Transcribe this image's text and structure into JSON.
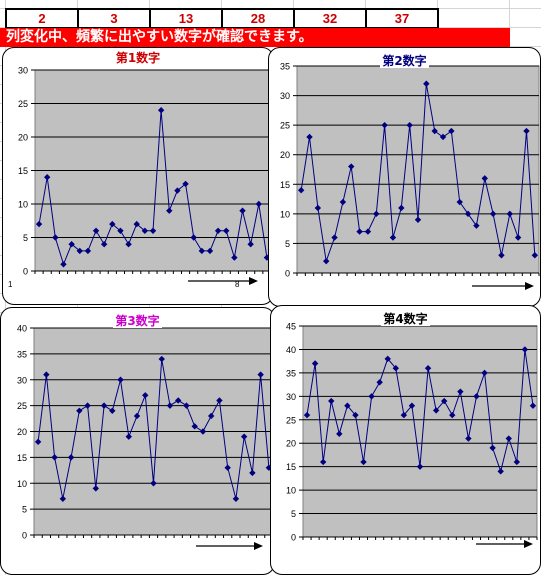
{
  "header_numbers": [
    "2",
    "3",
    "13",
    "28",
    "32",
    "37"
  ],
  "banner_text": "列変化中、頻繁に出やすい数字が確認できます。",
  "colors": {
    "series": "#000080",
    "plot_bg": "#c0c0c0",
    "banner_bg": "#ff0000",
    "number_text": "#cc0000"
  },
  "chart_data": [
    {
      "type": "line",
      "title": "第1数字",
      "title_color": "#cc0000",
      "ylim": [
        0,
        30
      ],
      "yticks": [
        0,
        5,
        10,
        15,
        20,
        25,
        30
      ],
      "x_tick_labels": [
        "1",
        "8"
      ],
      "grid": true,
      "values": [
        7,
        14,
        5,
        1,
        4,
        3,
        3,
        6,
        4,
        7,
        6,
        4,
        7,
        6,
        6,
        24,
        9,
        12,
        13,
        5,
        3,
        3,
        6,
        6,
        2,
        9,
        4,
        10,
        2
      ]
    },
    {
      "type": "line",
      "title": "第2数字",
      "title_color": "#000080",
      "ylim": [
        0,
        35
      ],
      "yticks": [
        0,
        5,
        10,
        15,
        20,
        25,
        30,
        35
      ],
      "x_tick_labels": [],
      "grid": true,
      "values": [
        14,
        23,
        11,
        2,
        6,
        12,
        18,
        7,
        7,
        10,
        25,
        6,
        11,
        25,
        9,
        32,
        24,
        23,
        24,
        12,
        10,
        8,
        16,
        10,
        3,
        10,
        6,
        24,
        3
      ]
    },
    {
      "type": "line",
      "title": "第3数字",
      "title_color": "#cc00cc",
      "ylim": [
        0,
        40
      ],
      "yticks": [
        0,
        5,
        10,
        15,
        20,
        25,
        30,
        35,
        40
      ],
      "x_tick_labels": [],
      "grid": true,
      "values": [
        18,
        31,
        15,
        7,
        15,
        24,
        25,
        9,
        25,
        24,
        30,
        19,
        23,
        27,
        10,
        34,
        25,
        26,
        25,
        21,
        20,
        23,
        26,
        13,
        7,
        19,
        12,
        31,
        13
      ]
    },
    {
      "type": "line",
      "title": "第4数字",
      "title_color": "#000000",
      "ylim": [
        0,
        45
      ],
      "yticks": [
        0,
        5,
        10,
        15,
        20,
        25,
        30,
        35,
        40,
        45
      ],
      "x_tick_labels": [],
      "grid": true,
      "values": [
        26,
        37,
        16,
        29,
        22,
        28,
        26,
        16,
        30,
        33,
        38,
        36,
        26,
        28,
        15,
        36,
        27,
        29,
        26,
        31,
        21,
        30,
        35,
        19,
        14,
        21,
        16,
        40,
        28
      ]
    }
  ]
}
